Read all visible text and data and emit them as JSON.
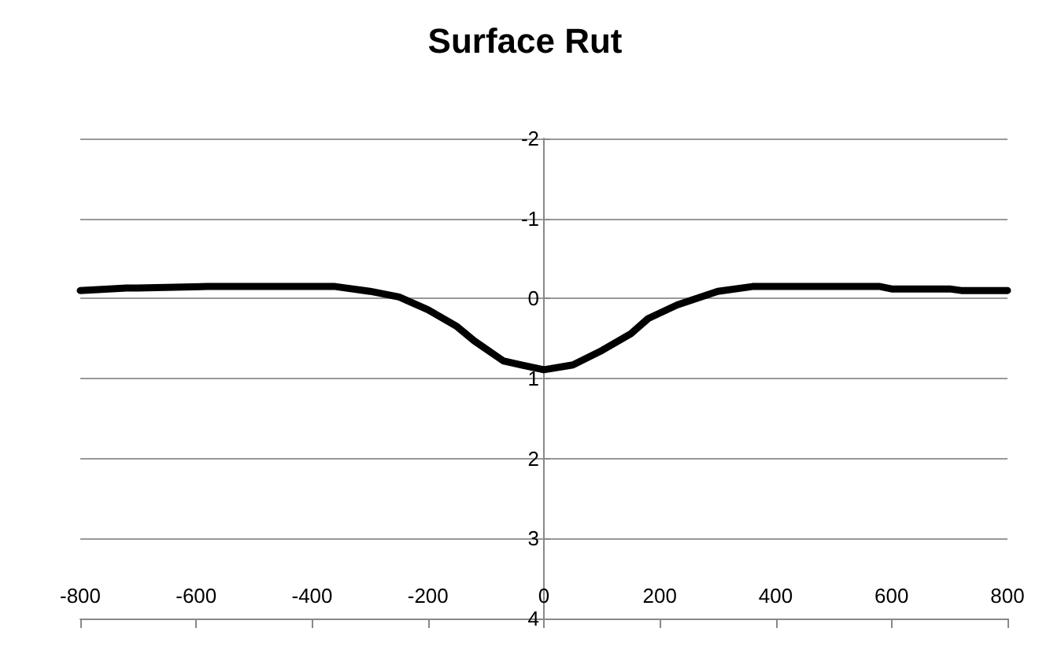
{
  "chart_data": {
    "type": "line",
    "title": "Surface Rut",
    "x": [
      -800,
      -720,
      -700,
      -580,
      -360,
      -300,
      -250,
      -200,
      -150,
      -120,
      -70,
      -40,
      0,
      50,
      100,
      150,
      180,
      230,
      300,
      360,
      580,
      600,
      700,
      720,
      800
    ],
    "series": [
      {
        "color": "#000000",
        "values": [
          -0.1,
          -0.13,
          -0.13,
          -0.15,
          -0.15,
          -0.09,
          -0.02,
          0.14,
          0.35,
          0.53,
          0.78,
          0.83,
          0.89,
          0.83,
          0.65,
          0.44,
          0.25,
          0.08,
          -0.09,
          -0.15,
          -0.15,
          -0.12,
          -0.12,
          -0.1,
          -0.1
        ]
      }
    ],
    "xlim": [
      -800,
      800
    ],
    "xticks": [
      -800,
      -600,
      -400,
      -200,
      0,
      200,
      400,
      600,
      800
    ],
    "ylim": [
      4,
      -2
    ],
    "yticks": [
      -2,
      -1,
      0,
      1,
      2,
      3,
      4
    ],
    "grid": "y",
    "marker": "none",
    "line_style": "solid"
  }
}
